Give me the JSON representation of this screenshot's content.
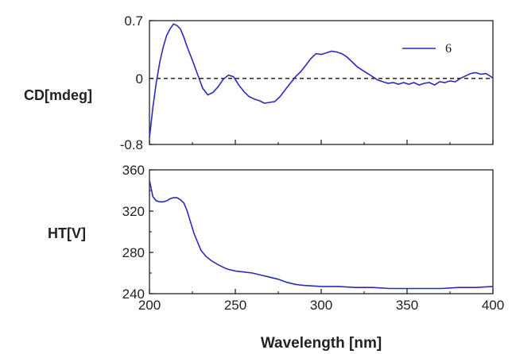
{
  "colors": {
    "series": "#2b2bb8",
    "axis": "#111111",
    "zero_line": "#111111"
  },
  "chart_data": [
    {
      "type": "line",
      "ylabel": "CD[mdeg]",
      "xlim": [
        200,
        400
      ],
      "ylim": [
        -0.8,
        0.7
      ],
      "yticks": [
        0.7,
        0,
        -0.8
      ],
      "ytick_labels": [
        "0.7",
        "0",
        "-0.8"
      ],
      "zero_line": true,
      "grid": false,
      "legend": {
        "position": "top-right",
        "entries": [
          "6"
        ]
      },
      "series": [
        {
          "name": "6",
          "x": [
            200,
            202,
            204,
            206,
            208,
            210,
            212,
            214,
            216,
            218,
            220,
            222,
            225,
            228,
            231,
            234,
            237,
            240,
            243,
            246,
            249,
            252,
            255,
            258,
            261,
            264,
            267,
            270,
            273,
            276,
            279,
            282,
            285,
            288,
            291,
            294,
            297,
            300,
            303,
            306,
            309,
            312,
            315,
            318,
            321,
            324,
            327,
            330,
            333,
            336,
            339,
            342,
            345,
            348,
            351,
            354,
            357,
            360,
            363,
            366,
            369,
            372,
            375,
            378,
            381,
            384,
            387,
            390,
            393,
            396,
            399,
            400
          ],
          "y": [
            -0.72,
            -0.35,
            -0.05,
            0.2,
            0.38,
            0.52,
            0.6,
            0.66,
            0.64,
            0.6,
            0.5,
            0.38,
            0.22,
            0.05,
            -0.12,
            -0.2,
            -0.17,
            -0.1,
            -0.01,
            0.04,
            0.02,
            -0.08,
            -0.16,
            -0.22,
            -0.25,
            -0.27,
            -0.3,
            -0.29,
            -0.28,
            -0.22,
            -0.14,
            -0.06,
            0.02,
            0.08,
            0.16,
            0.24,
            0.3,
            0.29,
            0.31,
            0.33,
            0.32,
            0.3,
            0.26,
            0.2,
            0.14,
            0.1,
            0.06,
            0.02,
            -0.02,
            -0.04,
            -0.06,
            -0.05,
            -0.07,
            -0.05,
            -0.07,
            -0.05,
            -0.08,
            -0.06,
            -0.05,
            -0.08,
            -0.04,
            -0.05,
            -0.03,
            -0.04,
            0.0,
            0.03,
            0.06,
            0.07,
            0.05,
            0.06,
            0.02,
            0.0
          ]
        }
      ]
    },
    {
      "type": "line",
      "ylabel": "HT[V]",
      "xlabel": "Wavelength [nm]",
      "xlim": [
        200,
        400
      ],
      "ylim": [
        240,
        360
      ],
      "xticks": [
        200,
        250,
        300,
        350,
        400
      ],
      "yticks": [
        360,
        320,
        280,
        240
      ],
      "grid": false,
      "series": [
        {
          "x": [
            200,
            202,
            204,
            206,
            208,
            210,
            212,
            214,
            216,
            218,
            220,
            222,
            224,
            226,
            228,
            230,
            233,
            236,
            240,
            245,
            250,
            255,
            260,
            265,
            270,
            275,
            280,
            285,
            290,
            300,
            310,
            320,
            330,
            340,
            350,
            360,
            370,
            380,
            390,
            400
          ],
          "y": [
            350,
            334,
            330,
            329,
            329,
            330,
            332,
            333,
            333,
            331,
            328,
            320,
            309,
            298,
            290,
            282,
            276,
            272,
            268,
            264,
            262,
            261,
            260,
            258,
            256,
            254,
            251,
            249,
            248,
            247,
            247,
            246,
            246,
            245,
            245,
            245,
            245,
            246,
            246,
            247
          ]
        }
      ]
    }
  ]
}
